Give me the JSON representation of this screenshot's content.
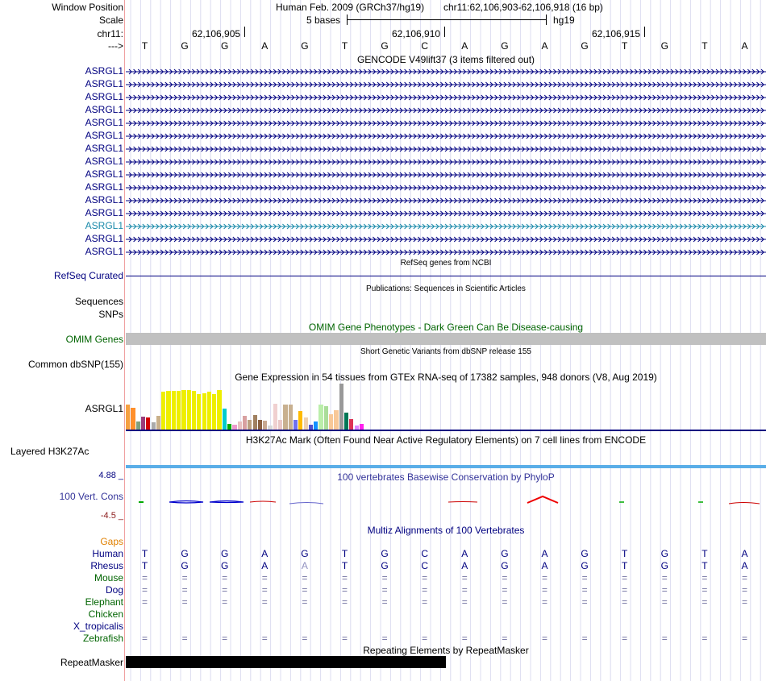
{
  "labels": {
    "window_position": "Window Position",
    "scale": "Scale",
    "chrom": "chr11:",
    "arrow": "--->",
    "refseq": "RefSeq Curated",
    "sequences": "Sequences",
    "snps": "SNPs",
    "omim": "OMIM Genes",
    "dbsnp": "Common dbSNP(155)",
    "gtex_gene": "ASRGL1",
    "h3k27ac": "Layered H3K27Ac",
    "phylop_max": "4.88 _",
    "phylop_name": "100 Vert. Cons",
    "phylop_min": "-4.5 _",
    "gaps": "Gaps",
    "repeatmasker": "RepeatMasker"
  },
  "header": {
    "assembly": "Human Feb. 2009 (GRCh37/hg19)",
    "position": "chr11:62,106,903-62,106,918 (16 bp)",
    "scale_text": "5 bases",
    "scale_db": "hg19",
    "ruler": [
      "62,106,905",
      "62,106,910",
      "62,106,915"
    ]
  },
  "bases": [
    "T",
    "G",
    "G",
    "A",
    "G",
    "T",
    "G",
    "C",
    "A",
    "G",
    "A",
    "G",
    "T",
    "G",
    "T",
    "A"
  ],
  "tracks": {
    "gencode_title": "GENCODE V49lift37 (3 items filtered out)",
    "gencode_items": [
      "ASRGL1",
      "ASRGL1",
      "ASRGL1",
      "ASRGL1",
      "ASRGL1",
      "ASRGL1",
      "ASRGL1",
      "ASRGL1",
      "ASRGL1",
      "ASRGL1",
      "ASRGL1",
      "ASRGL1",
      "ASRGL1",
      "ASRGL1",
      "ASRGL1"
    ],
    "refseq_title": "RefSeq genes from NCBI",
    "pubs_title": "Publications: Sequences in Scientific Articles",
    "omim_title": "OMIM Gene Phenotypes - Dark Green Can Be Disease-causing",
    "dbsnp_title": "Short Genetic Variants from dbSNP release 155",
    "gtex_title": "Gene Expression in 54 tissues from GTEx RNA-seq of 17382 samples, 948 donors (V8, Aug 2019)",
    "h3k_title": "H3K27Ac Mark (Often Found Near Active Regulatory Elements) on 7 cell lines from ENCODE",
    "phylop_title": "100 vertebrates Basewise Conservation by PhyloP",
    "multiz_title": "Multiz Alignments of 100 Vertebrates",
    "rmsk_title": "Repeating Elements by RepeatMasker"
  },
  "species": [
    "Human",
    "Rhesus",
    "Mouse",
    "Dog",
    "Elephant",
    "Chicken",
    "X_tropicalis",
    "Zebrafish"
  ],
  "alignment": {
    "Human": [
      "T",
      "G",
      "G",
      "A",
      "G",
      "T",
      "G",
      "C",
      "A",
      "G",
      "A",
      "G",
      "T",
      "G",
      "T",
      "A"
    ],
    "Rhesus": [
      "T",
      "G",
      "G",
      "A",
      "A",
      "T",
      "G",
      "C",
      "A",
      "G",
      "A",
      "G",
      "T",
      "G",
      "T",
      "A"
    ],
    "Mouse": [
      "=",
      "=",
      "=",
      "=",
      "=",
      "=",
      "=",
      "=",
      "=",
      "=",
      "=",
      "=",
      "=",
      "=",
      "=",
      "="
    ],
    "Dog": [
      "=",
      "=",
      "=",
      "=",
      "=",
      "=",
      "=",
      "=",
      "=",
      "=",
      "=",
      "=",
      "=",
      "=",
      "=",
      "="
    ],
    "Elephant": [
      "=",
      "=",
      "=",
      "=",
      "=",
      "=",
      "=",
      "=",
      "=",
      "=",
      "=",
      "=",
      "=",
      "=",
      "=",
      "="
    ],
    "Chicken": [
      "",
      "",
      "",
      "",
      "",
      "",
      "",
      "",
      "",
      "",
      "",
      "",
      "",
      "",
      "",
      ""
    ],
    "X_tropicalis": [
      "",
      "",
      "",
      "",
      "",
      "",
      "",
      "",
      "",
      "",
      "",
      "",
      "",
      "",
      "",
      ""
    ],
    "Zebrafish": [
      "=",
      "=",
      "=",
      "=",
      "=",
      "=",
      "=",
      "=",
      "=",
      "=",
      "=",
      "=",
      "=",
      "=",
      "=",
      "="
    ]
  },
  "colors": {
    "navy": "#000080",
    "green": "#006400",
    "omim_bar": "#c0c0c0",
    "h3k": "#5aaee8",
    "gaps": "#e08000",
    "phylop_neg": "#8b1a1a"
  },
  "gtex_values": [
    {
      "value": 0.3,
      "color": "#f5a040"
    },
    {
      "value": 0.26,
      "color": "#ff8f2b"
    },
    {
      "value": 0.1,
      "color": "#7fa07f"
    },
    {
      "value": 0.15,
      "color": "#9b3b7a"
    },
    {
      "value": 0.14,
      "color": "#d40000"
    },
    {
      "value": 0.09,
      "color": "#aaaaaa"
    },
    {
      "value": 0.16,
      "color": "#c9b08a"
    },
    {
      "value": 0.45,
      "color": "#eeee00"
    },
    {
      "value": 0.46,
      "color": "#eeee00"
    },
    {
      "value": 0.46,
      "color": "#eeee00"
    },
    {
      "value": 0.46,
      "color": "#eeee00"
    },
    {
      "value": 0.47,
      "color": "#eeee00"
    },
    {
      "value": 0.47,
      "color": "#eeee00"
    },
    {
      "value": 0.46,
      "color": "#eeee00"
    },
    {
      "value": 0.42,
      "color": "#eeee00"
    },
    {
      "value": 0.43,
      "color": "#eeee00"
    },
    {
      "value": 0.45,
      "color": "#eeee00"
    },
    {
      "value": 0.42,
      "color": "#eeee00"
    },
    {
      "value": 0.47,
      "color": "#eeee00"
    },
    {
      "value": 0.25,
      "color": "#00cccc"
    },
    {
      "value": 0.07,
      "color": "#00aa00"
    },
    {
      "value": 0.06,
      "color": "#ee99cc"
    },
    {
      "value": 0.1,
      "color": "#e8c0c0"
    },
    {
      "value": 0.16,
      "color": "#d8a0a0"
    },
    {
      "value": 0.12,
      "color": "#bba080"
    },
    {
      "value": 0.17,
      "color": "#a08060"
    },
    {
      "value": 0.12,
      "color": "#8a6040"
    },
    {
      "value": 0.11,
      "color": "#c8a890"
    },
    {
      "value": 0.05,
      "color": "#d8d8d8"
    },
    {
      "value": 0.31,
      "color": "#f0d0d0"
    },
    {
      "value": 0.12,
      "color": "#eac8c8"
    },
    {
      "value": 0.3,
      "color": "#c8b090"
    },
    {
      "value": 0.3,
      "color": "#c8b090"
    },
    {
      "value": 0.12,
      "color": "#7070ee"
    },
    {
      "value": 0.22,
      "color": "#ffbb00"
    },
    {
      "value": 0.14,
      "color": "#eed0b0"
    },
    {
      "value": 0.06,
      "color": "#5050cc"
    },
    {
      "value": 0.1,
      "color": "#1090ff"
    },
    {
      "value": 0.3,
      "color": "#bbeeaa"
    },
    {
      "value": 0.28,
      "color": "#aadd99"
    },
    {
      "value": 0.18,
      "color": "#f8c898"
    },
    {
      "value": 0.23,
      "color": "#f8c898"
    },
    {
      "value": 0.55,
      "color": "#999999"
    },
    {
      "value": 0.2,
      "color": "#007755"
    },
    {
      "value": 0.13,
      "color": "#dd3355"
    },
    {
      "value": 0.05,
      "color": "#dd88ff"
    },
    {
      "value": 0.07,
      "color": "#ff22ee"
    }
  ]
}
